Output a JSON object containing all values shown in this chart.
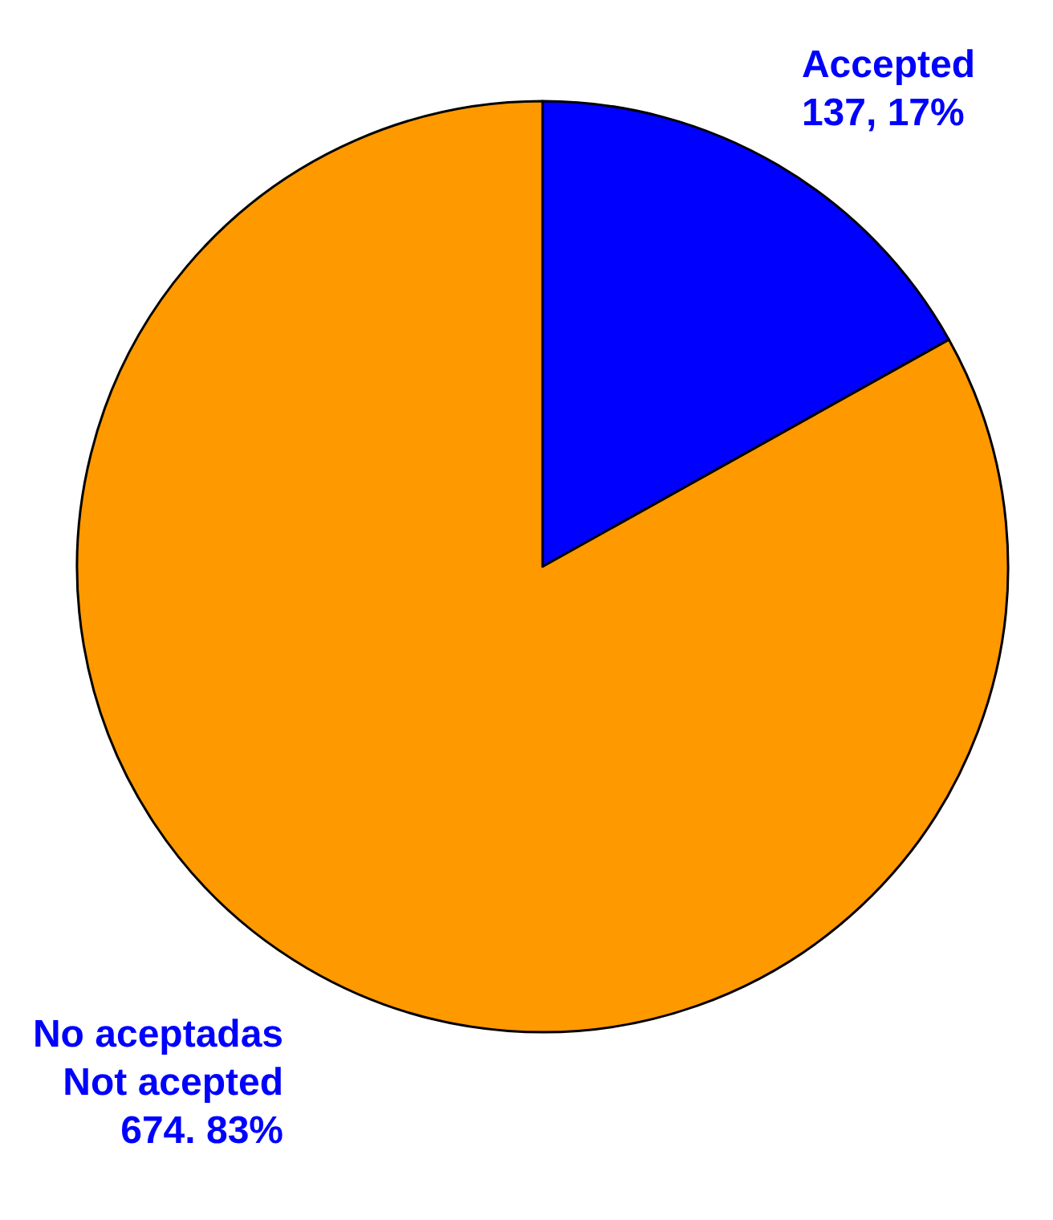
{
  "chart_data": {
    "type": "pie",
    "categories": [
      "Accepted",
      "No aceptadas\nNot acepted"
    ],
    "values": [
      137,
      674
    ],
    "colors": [
      "#0000ff",
      "#ff9900"
    ],
    "value_labels": [
      "137, 17%",
      "674. 83%"
    ]
  }
}
